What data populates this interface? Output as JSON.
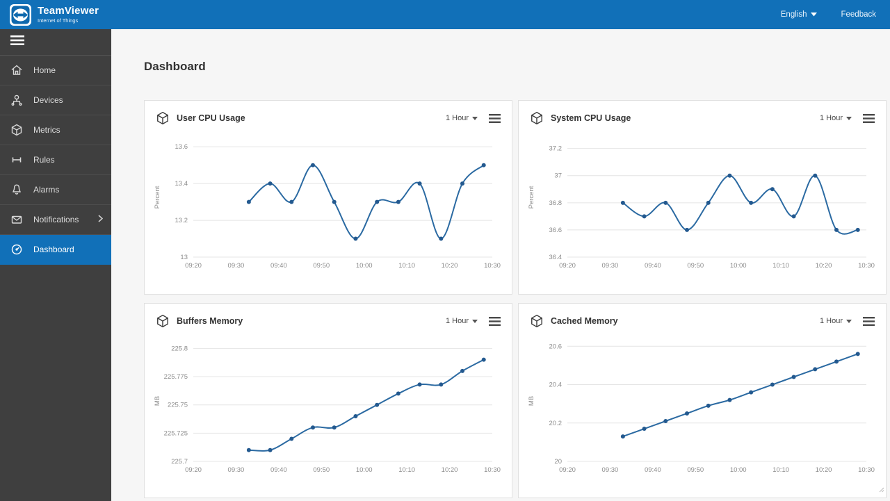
{
  "header": {
    "brand_title": "TeamViewer",
    "brand_subtitle": "Internet of Things",
    "language_label": "English",
    "feedback_label": "Feedback"
  },
  "sidebar": {
    "items": [
      {
        "label": "Home",
        "icon": "home-icon",
        "active": false
      },
      {
        "label": "Devices",
        "icon": "devices-icon",
        "active": false
      },
      {
        "label": "Metrics",
        "icon": "metrics-icon",
        "active": false
      },
      {
        "label": "Rules",
        "icon": "rules-icon",
        "active": false
      },
      {
        "label": "Alarms",
        "icon": "alarms-icon",
        "active": false
      },
      {
        "label": "Notifications",
        "icon": "notifications-icon",
        "active": false,
        "has_submenu": true
      },
      {
        "label": "Dashboard",
        "icon": "dashboard-icon",
        "active": true
      }
    ]
  },
  "main": {
    "page_title": "Dashboard"
  },
  "chart_data": [
    {
      "type": "line",
      "title": "User CPU Usage",
      "range_label": "1 Hour",
      "ylabel": "Percent",
      "xlabel": "",
      "legend": false,
      "grid": true,
      "x": [
        "09:33",
        "09:38",
        "09:43",
        "09:48",
        "09:53",
        "09:58",
        "10:03",
        "10:08",
        "10:13",
        "10:18",
        "10:23",
        "10:28"
      ],
      "values": [
        13.3,
        13.4,
        13.3,
        13.5,
        13.3,
        13.1,
        13.3,
        13.3,
        13.4,
        13.1,
        13.4,
        13.5
      ],
      "xticks": [
        "09:20",
        "09:30",
        "09:40",
        "09:50",
        "10:00",
        "10:10",
        "10:20",
        "10:30"
      ],
      "yticks": [
        {
          "v": 13.6,
          "label": "13.6"
        },
        {
          "v": 13.4,
          "label": "13.4"
        },
        {
          "v": 13.2,
          "label": "13.2"
        },
        {
          "v": 13.0,
          "label": "13"
        }
      ],
      "ylim": [
        13.0,
        13.65
      ]
    },
    {
      "type": "line",
      "title": "System CPU Usage",
      "range_label": "1 Hour",
      "ylabel": "Percent",
      "xlabel": "",
      "legend": false,
      "grid": true,
      "x": [
        "09:33",
        "09:38",
        "09:43",
        "09:48",
        "09:53",
        "09:58",
        "10:03",
        "10:08",
        "10:13",
        "10:18",
        "10:23",
        "10:28"
      ],
      "values": [
        36.8,
        36.7,
        36.8,
        36.6,
        36.8,
        37.0,
        36.8,
        36.9,
        36.7,
        37.0,
        36.6,
        36.6
      ],
      "xticks": [
        "09:20",
        "09:30",
        "09:40",
        "09:50",
        "10:00",
        "10:10",
        "10:20",
        "10:30"
      ],
      "yticks": [
        {
          "v": 37.2,
          "label": "37.2"
        },
        {
          "v": 37.0,
          "label": "37"
        },
        {
          "v": 36.8,
          "label": "36.8"
        },
        {
          "v": 36.6,
          "label": "36.6"
        },
        {
          "v": 36.4,
          "label": "36.4"
        }
      ],
      "ylim": [
        36.4,
        37.28
      ]
    },
    {
      "type": "line",
      "title": "Buffers Memory",
      "range_label": "1 Hour",
      "ylabel": "MB",
      "xlabel": "",
      "legend": false,
      "grid": true,
      "x": [
        "09:33",
        "09:38",
        "09:43",
        "09:48",
        "09:53",
        "09:58",
        "10:03",
        "10:08",
        "10:13",
        "10:18",
        "10:23",
        "10:28"
      ],
      "values": [
        225.71,
        225.71,
        225.72,
        225.73,
        225.73,
        225.74,
        225.75,
        225.76,
        225.768,
        225.768,
        225.78,
        225.79
      ],
      "xticks": [
        "09:20",
        "09:30",
        "09:40",
        "09:50",
        "10:00",
        "10:10",
        "10:20",
        "10:30"
      ],
      "yticks": [
        {
          "v": 225.8,
          "label": "225.8"
        },
        {
          "v": 225.775,
          "label": "225.775"
        },
        {
          "v": 225.75,
          "label": "225.75"
        },
        {
          "v": 225.725,
          "label": "225.725"
        },
        {
          "v": 225.7,
          "label": "225.7"
        }
      ],
      "ylim": [
        225.7,
        225.807
      ]
    },
    {
      "type": "line",
      "title": "Cached Memory",
      "range_label": "1 Hour",
      "ylabel": "MB",
      "xlabel": "",
      "legend": false,
      "grid": true,
      "x": [
        "09:33",
        "09:38",
        "09:43",
        "09:48",
        "09:53",
        "09:58",
        "10:03",
        "10:08",
        "10:13",
        "10:18",
        "10:23",
        "10:28"
      ],
      "values": [
        20.13,
        20.17,
        20.21,
        20.25,
        20.29,
        20.32,
        20.36,
        20.4,
        20.44,
        20.48,
        20.52,
        20.56
      ],
      "xticks": [
        "09:20",
        "09:30",
        "09:40",
        "09:50",
        "10:00",
        "10:10",
        "10:20",
        "10:30"
      ],
      "yticks": [
        {
          "v": 20.6,
          "label": "20.6"
        },
        {
          "v": 20.4,
          "label": "20.4"
        },
        {
          "v": 20.2,
          "label": "20.2"
        },
        {
          "v": 20.0,
          "label": "20"
        }
      ],
      "ylim": [
        20.0,
        20.63
      ]
    }
  ],
  "colors": {
    "header_blue": "#1170b8",
    "active_blue": "#1170b8",
    "line": "#2b6aa2",
    "marker": "#23598f",
    "grid": "#e4e4e4",
    "tick_text": "#8c8c8c"
  }
}
